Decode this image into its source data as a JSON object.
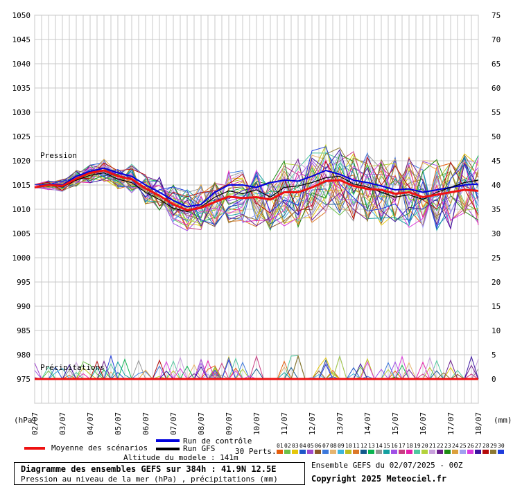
{
  "chart_data": {
    "type": "line",
    "title": "Diagramme des ensembles GEFS sur 384h : 41.9N 12.5E",
    "subtitle": "Pression au niveau de la mer (hPa) , précipitations (mm)",
    "left_unit": "(hPa)",
    "right_unit": "(mm)",
    "pressure_label": "Pression",
    "precip_label": "Précipitations",
    "left_axis": {
      "min": 970,
      "max": 1050,
      "ticks": [
        1050,
        1045,
        1040,
        1035,
        1030,
        1025,
        1020,
        1015,
        1010,
        1005,
        1000,
        995,
        990,
        985,
        980,
        975
      ]
    },
    "right_axis": {
      "min": -5,
      "max": 75,
      "ticks": [
        75,
        70,
        65,
        60,
        55,
        50,
        45,
        40,
        35,
        30,
        25,
        20,
        15,
        10,
        5,
        0
      ]
    },
    "x_labels": [
      "02/07",
      "03/07",
      "04/07",
      "05/07",
      "06/07",
      "07/07",
      "08/07",
      "09/07",
      "10/07",
      "11/07",
      "12/07",
      "13/07",
      "14/07",
      "15/07",
      "16/07",
      "17/07",
      "18/07"
    ],
    "grid": true,
    "series": [
      {
        "name": "Moyenne des scénarios",
        "color": "#ee1111",
        "values": [
          1014.5,
          1015,
          1014.8,
          1016.3,
          1017.5,
          1018,
          1016.8,
          1016.2,
          1014.3,
          1012.8,
          1011,
          1009.8,
          1010.3,
          1011.5,
          1012.6,
          1012.3,
          1012.5,
          1012,
          1013.5,
          1013.5,
          1014.5,
          1015.8,
          1016,
          1014.8,
          1014.2,
          1014,
          1013.2,
          1013.5,
          1012.5,
          1013,
          1013.5,
          1014,
          1013.8
        ]
      },
      {
        "name": "Run de contrôle",
        "color": "#0000dd",
        "values": [
          1014.5,
          1015.2,
          1015,
          1016.8,
          1017.8,
          1018.5,
          1017.5,
          1016.8,
          1015,
          1013.5,
          1011.8,
          1010.5,
          1011,
          1013.5,
          1015,
          1015,
          1014.5,
          1015.5,
          1016,
          1015.8,
          1016.8,
          1018,
          1017.2,
          1016,
          1015.5,
          1014.8,
          1014,
          1014.2,
          1013.5,
          1014,
          1014.5,
          1015,
          1015.2
        ]
      },
      {
        "name": "Run GFS",
        "color": "#000000",
        "values": [
          1014.5,
          1015,
          1014.6,
          1016,
          1017,
          1017.5,
          1016.2,
          1015.5,
          1013.5,
          1012,
          1010.2,
          1009.5,
          1010.5,
          1012.5,
          1013.8,
          1013.2,
          1014,
          1012.5,
          1014.5,
          1014.8,
          1015.5,
          1016.5,
          1016.8,
          1015.2,
          1014.6,
          1013.5,
          1012.5,
          1013,
          1012,
          1013.5,
          1014.5,
          1015.5,
          1016
        ]
      }
    ],
    "legend": {
      "mean_label": "Moyenne des scénarios",
      "control_label": "Run de contrôle",
      "gfs_label": "Run GFS",
      "perts_label": "30 Perts.",
      "altitude": "Altitude du modele : 141m"
    },
    "perturbation_colors": [
      "#e65c0a",
      "#6cc048",
      "#e6c70a",
      "#1e56c8",
      "#a049cb",
      "#8c5a28",
      "#3c78dc",
      "#e6b46e",
      "#3cb4dc",
      "#bdbd1e",
      "#dc7828",
      "#145a8c",
      "#0ab450",
      "#969696",
      "#14a0a0",
      "#a050e6",
      "#c83c82",
      "#e61eaa",
      "#50c8a0",
      "#b4d23c",
      "#c8a0dc",
      "#6e1e8c",
      "#1e8c14",
      "#dca03c",
      "#a0a0f0",
      "#dc3cdc",
      "#3c14a0",
      "#b40a0a",
      "#8c7832",
      "#1e3cdc"
    ],
    "perturbation_numbers": [
      "01",
      "02",
      "03",
      "04",
      "05",
      "06",
      "07",
      "08",
      "09",
      "10",
      "11",
      "12",
      "13",
      "14",
      "15",
      "16",
      "17",
      "18",
      "19",
      "20",
      "21",
      "22",
      "23",
      "24",
      "25",
      "26",
      "27",
      "28",
      "29",
      "30"
    ]
  },
  "footer": {
    "ensemble": "Ensemble GEFS du 02/07/2025 - 00Z",
    "copyright": "Copyright 2025 Meteociel.fr"
  }
}
